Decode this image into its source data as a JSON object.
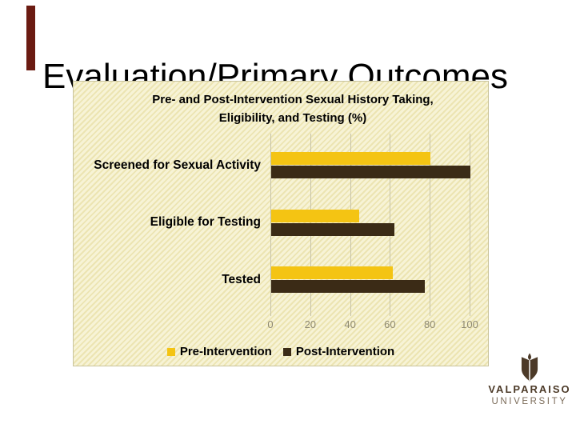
{
  "slide_title": "Evaluation/Primary Outcomes",
  "accent_bar": {
    "color": "#6B1B12"
  },
  "chart_data": {
    "type": "bar",
    "orientation": "horizontal",
    "title": "Pre- and Post-Intervention Sexual History Taking, Eligibility, and Testing (%)",
    "title_lines": [
      "Pre- and Post-Intervention Sexual History Taking,",
      "Eligibility, and Testing (%)"
    ],
    "categories": [
      "Screened for Sexual Activity",
      "Eligible for Testing",
      "Tested"
    ],
    "series": [
      {
        "name": "Pre-Intervention",
        "color": "#F4C413",
        "values": [
          80,
          44,
          61
        ]
      },
      {
        "name": "Post-Intervention",
        "color": "#3B2B16",
        "values": [
          100,
          62,
          77
        ]
      }
    ],
    "xlim": [
      0,
      100
    ],
    "x_ticks": [
      0,
      20,
      40,
      60,
      80,
      100
    ],
    "grid": true,
    "legend_position": "bottom",
    "plot_background": "pale-yellow diagonal hatch"
  },
  "logo": {
    "org": "Valparaiso University",
    "line1": "VALPARAISO",
    "line2": "UNIVERSITY",
    "color": "#4C3A28"
  }
}
